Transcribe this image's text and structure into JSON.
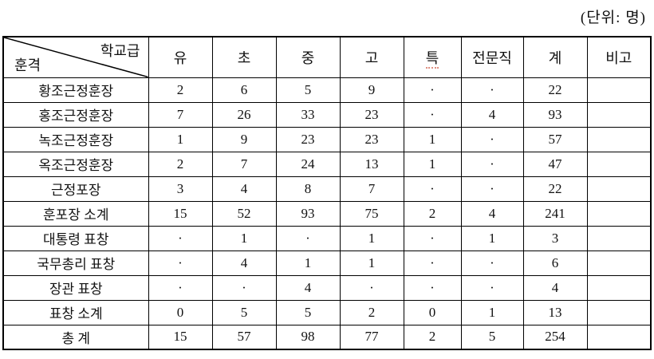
{
  "unit_label": "(단위: 명)",
  "table": {
    "corner": {
      "top": "학교급",
      "bottom": "훈격"
    },
    "columns": [
      "유",
      "초",
      "중",
      "고",
      "특",
      "전문직",
      "계",
      "비고"
    ],
    "rows": [
      {
        "label": "황조근정훈장",
        "values": [
          "2",
          "6",
          "5",
          "9",
          "·",
          "·",
          "22",
          ""
        ]
      },
      {
        "label": "홍조근정훈장",
        "values": [
          "7",
          "26",
          "33",
          "23",
          "·",
          "4",
          "93",
          ""
        ]
      },
      {
        "label": "녹조근정훈장",
        "values": [
          "1",
          "9",
          "23",
          "23",
          "1",
          "·",
          "57",
          ""
        ]
      },
      {
        "label": "옥조근정훈장",
        "values": [
          "2",
          "7",
          "24",
          "13",
          "1",
          "·",
          "47",
          ""
        ]
      },
      {
        "label": "근정포장",
        "values": [
          "3",
          "4",
          "8",
          "7",
          "·",
          "·",
          "22",
          ""
        ]
      },
      {
        "label": "훈포장 소계",
        "values": [
          "15",
          "52",
          "93",
          "75",
          "2",
          "4",
          "241",
          ""
        ]
      },
      {
        "label": "대통령 표창",
        "values": [
          "·",
          "1",
          "·",
          "1",
          "·",
          "1",
          "3",
          ""
        ]
      },
      {
        "label": "국무총리 표창",
        "values": [
          "·",
          "4",
          "1",
          "1",
          "·",
          "·",
          "6",
          ""
        ]
      },
      {
        "label": "장관 표창",
        "values": [
          "·",
          "·",
          "4",
          "·",
          "·",
          "·",
          "4",
          ""
        ]
      },
      {
        "label": "표창 소계",
        "values": [
          "0",
          "5",
          "5",
          "2",
          "0",
          "1",
          "13",
          ""
        ]
      },
      {
        "label": "총 계",
        "values": [
          "15",
          "57",
          "98",
          "77",
          "2",
          "5",
          "254",
          ""
        ]
      }
    ]
  }
}
